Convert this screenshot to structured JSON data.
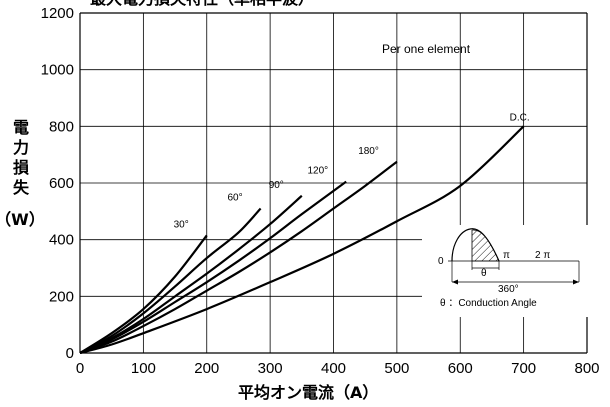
{
  "chart_data": {
    "type": "line",
    "title": "最大電力損失特性（単相半波）",
    "xlabel": "平均オン電流（A）",
    "ylabel_lines": [
      "電",
      "力",
      "損",
      "失",
      "（W）"
    ],
    "xlim": [
      0,
      800
    ],
    "ylim": [
      0,
      1200
    ],
    "x_ticks": [
      0,
      100,
      200,
      300,
      400,
      500,
      600,
      700,
      800
    ],
    "y_ticks": [
      0,
      200,
      400,
      600,
      800,
      1000,
      1200
    ],
    "grid": true,
    "annotation": "Per one element",
    "series": [
      {
        "name": "30°",
        "points": [
          [
            0,
            0
          ],
          [
            50,
            70
          ],
          [
            100,
            155
          ],
          [
            150,
            270
          ],
          [
            200,
            415
          ]
        ]
      },
      {
        "name": "60°",
        "points": [
          [
            0,
            0
          ],
          [
            50,
            60
          ],
          [
            100,
            140
          ],
          [
            150,
            235
          ],
          [
            200,
            335
          ],
          [
            250,
            425
          ],
          [
            285,
            510
          ]
        ]
      },
      {
        "name": "90°",
        "points": [
          [
            0,
            0
          ],
          [
            50,
            52
          ],
          [
            100,
            120
          ],
          [
            150,
            200
          ],
          [
            200,
            280
          ],
          [
            250,
            365
          ],
          [
            300,
            455
          ],
          [
            350,
            555
          ]
        ]
      },
      {
        "name": "120°",
        "points": [
          [
            0,
            0
          ],
          [
            50,
            48
          ],
          [
            100,
            110
          ],
          [
            150,
            180
          ],
          [
            200,
            250
          ],
          [
            250,
            325
          ],
          [
            300,
            405
          ],
          [
            350,
            490
          ],
          [
            420,
            605
          ]
        ]
      },
      {
        "name": "180°",
        "points": [
          [
            0,
            0
          ],
          [
            50,
            40
          ],
          [
            100,
            95
          ],
          [
            150,
            155
          ],
          [
            200,
            220
          ],
          [
            250,
            285
          ],
          [
            300,
            355
          ],
          [
            350,
            430
          ],
          [
            400,
            510
          ],
          [
            450,
            590
          ],
          [
            500,
            675
          ]
        ]
      },
      {
        "name": "D.C.",
        "points": [
          [
            0,
            0
          ],
          [
            50,
            30
          ],
          [
            100,
            70
          ],
          [
            200,
            155
          ],
          [
            300,
            250
          ],
          [
            400,
            350
          ],
          [
            500,
            465
          ],
          [
            600,
            590
          ],
          [
            700,
            800
          ]
        ]
      }
    ],
    "inset": {
      "zero_label": "0",
      "pi_label": "π",
      "two_pi_label": "2 π",
      "theta_label": "θ",
      "degree_label": "360°",
      "caption": "θ ：Conduction Angle"
    }
  }
}
